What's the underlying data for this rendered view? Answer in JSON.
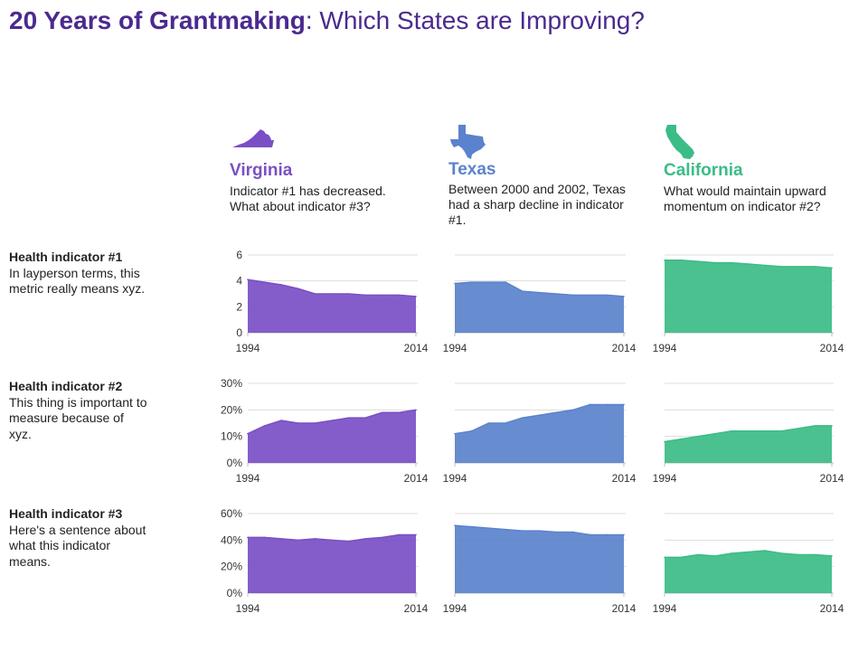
{
  "title": {
    "bold": "20 Years of Grantmaking",
    "rest": ": Which States are Improving?"
  },
  "states": [
    {
      "name": "Virginia",
      "color": "#7a4fc6",
      "icon": "virginia-map-icon",
      "description": "Indicator #1 has decreased. What about indicator #3?"
    },
    {
      "name": "Texas",
      "color": "#5b82cc",
      "icon": "texas-map-icon",
      "description": "Between 2000 and 2002, Texas had a sharp decline in indicator #1."
    },
    {
      "name": "California",
      "color": "#3cbc87",
      "icon": "california-map-icon",
      "description": "What would maintain upward momentum on indicator #2?"
    }
  ],
  "indicators": [
    {
      "title": "Health indicator #1",
      "description": "In layperson terms, this metric really means xyz."
    },
    {
      "title": "Health indicator #2",
      "description": "This thing is important to measure because of xyz."
    },
    {
      "title": "Health indicator #3",
      "description": "Here's a sentence about what this indicator means."
    }
  ],
  "chart_data": [
    {
      "type": "area",
      "state": "Virginia",
      "indicator": "Health indicator #1",
      "x": [
        1994,
        1996,
        1998,
        2000,
        2002,
        2004,
        2006,
        2008,
        2010,
        2012,
        2014
      ],
      "values": [
        4.1,
        3.9,
        3.7,
        3.4,
        3.0,
        3.0,
        3.0,
        2.9,
        2.9,
        2.9,
        2.8
      ],
      "ylim": [
        0,
        6
      ],
      "yticks": [
        "0",
        "2",
        "4",
        "6"
      ],
      "xticks": [
        "1994",
        "2014"
      ],
      "grid": true
    },
    {
      "type": "area",
      "state": "Texas",
      "indicator": "Health indicator #1",
      "x": [
        1994,
        1996,
        1998,
        2000,
        2002,
        2004,
        2006,
        2008,
        2010,
        2012,
        2014
      ],
      "values": [
        3.8,
        3.9,
        3.9,
        3.9,
        3.2,
        3.1,
        3.0,
        2.9,
        2.9,
        2.9,
        2.8
      ],
      "ylim": [
        0,
        6
      ],
      "yticks": [],
      "xticks": [
        "1994",
        "2014"
      ],
      "grid": true
    },
    {
      "type": "area",
      "state": "California",
      "indicator": "Health indicator #1",
      "x": [
        1994,
        1996,
        1998,
        2000,
        2002,
        2004,
        2006,
        2008,
        2010,
        2012,
        2014
      ],
      "values": [
        5.6,
        5.6,
        5.5,
        5.4,
        5.4,
        5.3,
        5.2,
        5.1,
        5.1,
        5.1,
        5.0
      ],
      "ylim": [
        0,
        6
      ],
      "yticks": [],
      "xticks": [
        "1994",
        "2014"
      ],
      "grid": true
    },
    {
      "type": "area",
      "state": "Virginia",
      "indicator": "Health indicator #2",
      "x": [
        1994,
        1996,
        1998,
        2000,
        2002,
        2004,
        2006,
        2008,
        2010,
        2012,
        2014
      ],
      "values": [
        11,
        14,
        16,
        15,
        15,
        16,
        17,
        17,
        19,
        19,
        20
      ],
      "ylim": [
        0,
        30
      ],
      "yticks": [
        "0%",
        "10%",
        "20%",
        "30%"
      ],
      "xticks": [
        "1994",
        "2014"
      ],
      "grid": true
    },
    {
      "type": "area",
      "state": "Texas",
      "indicator": "Health indicator #2",
      "x": [
        1994,
        1996,
        1998,
        2000,
        2002,
        2004,
        2006,
        2008,
        2010,
        2012,
        2014
      ],
      "values": [
        11,
        12,
        15,
        15,
        17,
        18,
        19,
        20,
        22,
        22,
        22
      ],
      "ylim": [
        0,
        30
      ],
      "yticks": [],
      "xticks": [
        "1994",
        "2014"
      ],
      "grid": true
    },
    {
      "type": "area",
      "state": "California",
      "indicator": "Health indicator #2",
      "x": [
        1994,
        1996,
        1998,
        2000,
        2002,
        2004,
        2006,
        2008,
        2010,
        2012,
        2014
      ],
      "values": [
        8,
        9,
        10,
        11,
        12,
        12,
        12,
        12,
        13,
        14,
        14
      ],
      "ylim": [
        0,
        30
      ],
      "yticks": [],
      "xticks": [
        "1994",
        "2014"
      ],
      "grid": true
    },
    {
      "type": "area",
      "state": "Virginia",
      "indicator": "Health indicator #3",
      "x": [
        1994,
        1996,
        1998,
        2000,
        2002,
        2004,
        2006,
        2008,
        2010,
        2012,
        2014
      ],
      "values": [
        42,
        42,
        41,
        40,
        41,
        40,
        39,
        41,
        42,
        44,
        44
      ],
      "ylim": [
        0,
        60
      ],
      "yticks": [
        "0%",
        "20%",
        "40%",
        "60%"
      ],
      "xticks": [
        "1994",
        "2014"
      ],
      "grid": true
    },
    {
      "type": "area",
      "state": "Texas",
      "indicator": "Health indicator #3",
      "x": [
        1994,
        1996,
        1998,
        2000,
        2002,
        2004,
        2006,
        2008,
        2010,
        2012,
        2014
      ],
      "values": [
        51,
        50,
        49,
        48,
        47,
        47,
        46,
        46,
        44,
        44,
        44
      ],
      "ylim": [
        0,
        60
      ],
      "yticks": [],
      "xticks": [
        "1994",
        "2014"
      ],
      "grid": true
    },
    {
      "type": "area",
      "state": "California",
      "indicator": "Health indicator #3",
      "x": [
        1994,
        1996,
        1998,
        2000,
        2002,
        2004,
        2006,
        2008,
        2010,
        2012,
        2014
      ],
      "values": [
        27,
        27,
        29,
        28,
        30,
        31,
        32,
        30,
        29,
        29,
        28
      ],
      "ylim": [
        0,
        60
      ],
      "yticks": [],
      "xticks": [
        "1994",
        "2014"
      ],
      "grid": true
    }
  ]
}
